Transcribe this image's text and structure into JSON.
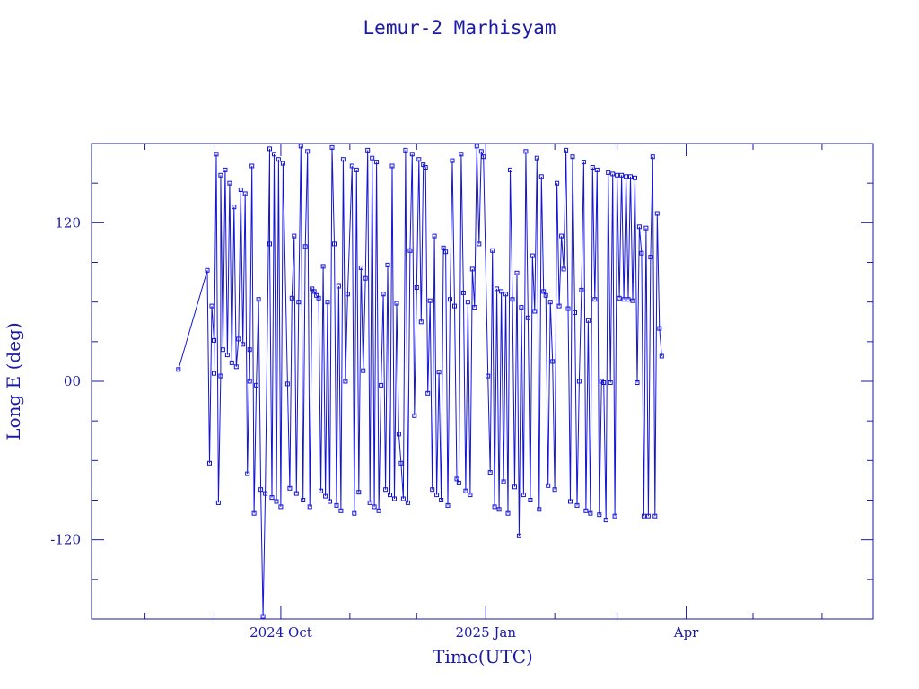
{
  "chart_data": {
    "type": "line",
    "title": "Lemur-2 Marhisyam",
    "xlabel": "Time(UTC)",
    "ylabel": "Long E (deg)",
    "x_axis_type": "date",
    "xlim": [
      "2024-07-08",
      "2025-06-24"
    ],
    "ylim": [
      -180,
      180
    ],
    "x_ticks": [
      {
        "date": "2024-10-01",
        "label": "2024 Oct"
      },
      {
        "date": "2025-01-01",
        "label": "2025 Jan"
      },
      {
        "date": "2025-04-01",
        "label": "Apr"
      }
    ],
    "y_ticks": [
      {
        "value": -120,
        "label": "-120"
      },
      {
        "value": 0,
        "label": "00"
      },
      {
        "value": 120,
        "label": "120"
      }
    ],
    "grid": false,
    "legend": "none",
    "marker": "open-square",
    "series": [
      {
        "values_note": "",
        "points": [
          [
            "2024-08-16",
            9
          ],
          [
            "2024-08-29",
            84
          ],
          [
            "2024-08-30",
            -62
          ],
          [
            "2024-08-31",
            57
          ],
          [
            "2024-09-01",
            31
          ],
          [
            "2024-09-01",
            6
          ],
          [
            "2024-09-02",
            172
          ],
          [
            "2024-09-03",
            -92
          ],
          [
            "2024-09-04",
            4
          ],
          [
            "2024-09-04",
            156
          ],
          [
            "2024-09-05",
            24
          ],
          [
            "2024-09-06",
            160
          ],
          [
            "2024-09-07",
            20
          ],
          [
            "2024-09-08",
            150
          ],
          [
            "2024-09-09",
            14
          ],
          [
            "2024-09-10",
            132
          ],
          [
            "2024-09-11",
            11
          ],
          [
            "2024-09-12",
            32
          ],
          [
            "2024-09-13",
            145
          ],
          [
            "2024-09-14",
            28
          ],
          [
            "2024-09-15",
            142
          ],
          [
            "2024-09-16",
            -70
          ],
          [
            "2024-09-17",
            24
          ],
          [
            "2024-09-17",
            0
          ],
          [
            "2024-09-18",
            163
          ],
          [
            "2024-09-19",
            -100
          ],
          [
            "2024-09-20",
            -3
          ],
          [
            "2024-09-21",
            62
          ],
          [
            "2024-09-22",
            -82
          ],
          [
            "2024-09-23",
            -178
          ],
          [
            "2024-09-24",
            -85
          ],
          [
            "2024-09-26",
            176
          ],
          [
            "2024-09-26",
            104
          ],
          [
            "2024-09-27",
            -88
          ],
          [
            "2024-09-28",
            172
          ],
          [
            "2024-09-29",
            -91
          ],
          [
            "2024-09-30",
            168
          ],
          [
            "2024-10-01",
            -95
          ],
          [
            "2024-10-02",
            165
          ],
          [
            "2024-10-04",
            -2
          ],
          [
            "2024-10-05",
            -81
          ],
          [
            "2024-10-06",
            63
          ],
          [
            "2024-10-07",
            110
          ],
          [
            "2024-10-08",
            -85
          ],
          [
            "2024-10-09",
            60
          ],
          [
            "2024-10-10",
            178
          ],
          [
            "2024-10-11",
            -90
          ],
          [
            "2024-10-12",
            102
          ],
          [
            "2024-10-13",
            174
          ],
          [
            "2024-10-14",
            -95
          ],
          [
            "2024-10-15",
            70
          ],
          [
            "2024-10-16",
            68
          ],
          [
            "2024-10-17",
            65
          ],
          [
            "2024-10-18",
            63
          ],
          [
            "2024-10-19",
            -83
          ],
          [
            "2024-10-20",
            87
          ],
          [
            "2024-10-21",
            -87
          ],
          [
            "2024-10-22",
            60
          ],
          [
            "2024-10-23",
            -91
          ],
          [
            "2024-10-24",
            177
          ],
          [
            "2024-10-25",
            104
          ],
          [
            "2024-10-26",
            -94
          ],
          [
            "2024-10-27",
            72
          ],
          [
            "2024-10-28",
            -98
          ],
          [
            "2024-10-29",
            168
          ],
          [
            "2024-10-30",
            0
          ],
          [
            "2024-10-31",
            66
          ],
          [
            "2024-11-02",
            163
          ],
          [
            "2024-11-03",
            -100
          ],
          [
            "2024-11-04",
            160
          ],
          [
            "2024-11-05",
            -84
          ],
          [
            "2024-11-06",
            86
          ],
          [
            "2024-11-07",
            8
          ],
          [
            "2024-11-08",
            78
          ],
          [
            "2024-11-09",
            175
          ],
          [
            "2024-11-10",
            -92
          ],
          [
            "2024-11-11",
            169
          ],
          [
            "2024-11-12",
            -95
          ],
          [
            "2024-11-13",
            166
          ],
          [
            "2024-11-14",
            -98
          ],
          [
            "2024-11-15",
            -3
          ],
          [
            "2024-11-16",
            66
          ],
          [
            "2024-11-17",
            -82
          ],
          [
            "2024-11-18",
            88
          ],
          [
            "2024-11-19",
            -86
          ],
          [
            "2024-11-20",
            163
          ],
          [
            "2024-11-21",
            -89
          ],
          [
            "2024-11-22",
            59
          ],
          [
            "2024-11-23",
            -40
          ],
          [
            "2024-11-24",
            -62
          ],
          [
            "2024-11-25",
            -89
          ],
          [
            "2024-11-26",
            175
          ],
          [
            "2024-11-27",
            -92
          ],
          [
            "2024-11-28",
            99
          ],
          [
            "2024-11-29",
            172
          ],
          [
            "2024-11-30",
            -26
          ],
          [
            "2024-12-01",
            71
          ],
          [
            "2024-12-02",
            168
          ],
          [
            "2024-12-03",
            45
          ],
          [
            "2024-12-04",
            164
          ],
          [
            "2024-12-05",
            162
          ],
          [
            "2024-12-06",
            -9
          ],
          [
            "2024-12-07",
            61
          ],
          [
            "2024-12-08",
            -82
          ],
          [
            "2024-12-09",
            110
          ],
          [
            "2024-12-10",
            -86
          ],
          [
            "2024-12-11",
            7
          ],
          [
            "2024-12-12",
            -90
          ],
          [
            "2024-12-13",
            101
          ],
          [
            "2024-12-14",
            98
          ],
          [
            "2024-12-15",
            -94
          ],
          [
            "2024-12-16",
            62
          ],
          [
            "2024-12-17",
            167
          ],
          [
            "2024-12-18",
            57
          ],
          [
            "2024-12-19",
            -74
          ],
          [
            "2024-12-20",
            -77
          ],
          [
            "2024-12-21",
            172
          ],
          [
            "2024-12-22",
            67
          ],
          [
            "2024-12-23",
            -83
          ],
          [
            "2024-12-24",
            60
          ],
          [
            "2024-12-25",
            -86
          ],
          [
            "2024-12-26",
            85
          ],
          [
            "2024-12-27",
            56
          ],
          [
            "2024-12-28",
            178
          ],
          [
            "2024-12-29",
            104
          ],
          [
            "2024-12-30",
            174
          ],
          [
            "2024-12-31",
            170
          ],
          [
            "2025-01-02",
            4
          ],
          [
            "2025-01-03",
            -69
          ],
          [
            "2025-01-04",
            99
          ],
          [
            "2025-01-05",
            -95
          ],
          [
            "2025-01-06",
            70
          ],
          [
            "2025-01-07",
            -97
          ],
          [
            "2025-01-08",
            68
          ],
          [
            "2025-01-09",
            -76
          ],
          [
            "2025-01-10",
            66
          ],
          [
            "2025-01-11",
            -100
          ],
          [
            "2025-01-12",
            160
          ],
          [
            "2025-01-13",
            62
          ],
          [
            "2025-01-14",
            -80
          ],
          [
            "2025-01-15",
            82
          ],
          [
            "2025-01-16",
            -117
          ],
          [
            "2025-01-17",
            56
          ],
          [
            "2025-01-18",
            -86
          ],
          [
            "2025-01-19",
            174
          ],
          [
            "2025-01-20",
            48
          ],
          [
            "2025-01-21",
            -90
          ],
          [
            "2025-01-22",
            95
          ],
          [
            "2025-01-23",
            53
          ],
          [
            "2025-01-24",
            169
          ],
          [
            "2025-01-25",
            -97
          ],
          [
            "2025-01-26",
            155
          ],
          [
            "2025-01-27",
            68
          ],
          [
            "2025-01-28",
            65
          ],
          [
            "2025-01-29",
            -79
          ],
          [
            "2025-01-30",
            60
          ],
          [
            "2025-01-31",
            15
          ],
          [
            "2025-02-01",
            -82
          ],
          [
            "2025-02-02",
            150
          ],
          [
            "2025-02-03",
            57
          ],
          [
            "2025-02-04",
            110
          ],
          [
            "2025-02-05",
            85
          ],
          [
            "2025-02-06",
            175
          ],
          [
            "2025-02-07",
            55
          ],
          [
            "2025-02-08",
            -91
          ],
          [
            "2025-02-09",
            170
          ],
          [
            "2025-02-10",
            52
          ],
          [
            "2025-02-11",
            -94
          ],
          [
            "2025-02-12",
            0
          ],
          [
            "2025-02-13",
            69
          ],
          [
            "2025-02-14",
            166
          ],
          [
            "2025-02-15",
            -98
          ],
          [
            "2025-02-16",
            46
          ],
          [
            "2025-02-17",
            -100
          ],
          [
            "2025-02-18",
            162
          ],
          [
            "2025-02-19",
            62
          ],
          [
            "2025-02-20",
            160
          ],
          [
            "2025-02-21",
            -101
          ],
          [
            "2025-02-22",
            0
          ],
          [
            "2025-02-23",
            -1
          ],
          [
            "2025-02-24",
            -105
          ],
          [
            "2025-02-25",
            158
          ],
          [
            "2025-02-26",
            -1
          ],
          [
            "2025-02-27",
            157
          ],
          [
            "2025-02-28",
            -102
          ],
          [
            "2025-03-01",
            156
          ],
          [
            "2025-03-02",
            63
          ],
          [
            "2025-03-03",
            156
          ],
          [
            "2025-03-04",
            62
          ],
          [
            "2025-03-05",
            155
          ],
          [
            "2025-03-06",
            62
          ],
          [
            "2025-03-07",
            155
          ],
          [
            "2025-03-08",
            61
          ],
          [
            "2025-03-09",
            154
          ],
          [
            "2025-03-10",
            -1
          ],
          [
            "2025-03-11",
            117
          ],
          [
            "2025-03-12",
            97
          ],
          [
            "2025-03-13",
            -102
          ],
          [
            "2025-03-14",
            116
          ],
          [
            "2025-03-15",
            -102
          ],
          [
            "2025-03-16",
            94
          ],
          [
            "2025-03-17",
            170
          ],
          [
            "2025-03-18",
            -102
          ],
          [
            "2025-03-19",
            127
          ],
          [
            "2025-03-20",
            40
          ],
          [
            "2025-03-21",
            19
          ]
        ]
      }
    ]
  }
}
